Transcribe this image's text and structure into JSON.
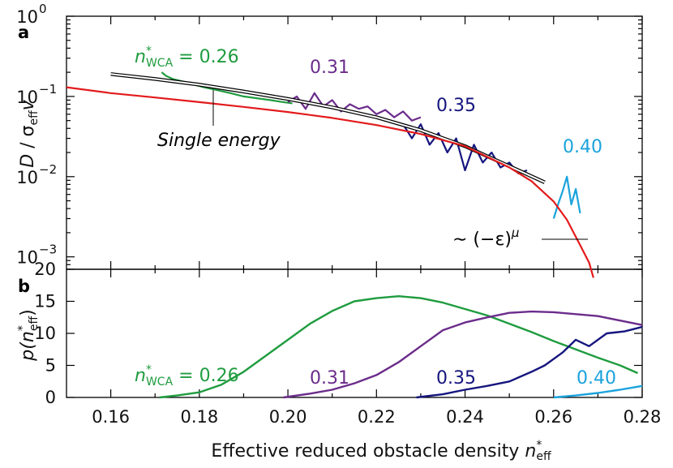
{
  "figure": {
    "xlabel": "Effective reduced obstacle density",
    "xlabel_sym": "n",
    "xlabel_sup": "*",
    "xlabel_sub": "eff",
    "x_ticks": [
      "0.16",
      "0.18",
      "0.20",
      "0.22",
      "0.24",
      "0.26",
      "0.28"
    ]
  },
  "chart_data": [
    {
      "panel": "a",
      "type": "line",
      "yscale": "log",
      "xlim": [
        0.15,
        0.28
      ],
      "ylim": [
        0.0007,
        1.0
      ],
      "ylabel": "D / σ_eff v",
      "ylabel_main": "D",
      "ylabel_sep": " / σ",
      "ylabel_sub": "eff",
      "ylabel_v": "v",
      "y_ticks": [
        "10",
        "10",
        "10",
        "10"
      ],
      "y_tick_exps": [
        "0",
        "−1",
        "−2",
        "−3"
      ],
      "y_tick_values": [
        1,
        0.1,
        0.01,
        0.001
      ],
      "labels": {
        "n_sym": "n",
        "n_sup": "*",
        "n_sub": "WCA",
        "first": " = 0.26",
        "l031": "0.31",
        "l035": "0.35",
        "l040": "0.40",
        "single": "Single energy",
        "power": "∼ (−ε)",
        "power_exp": "μ"
      },
      "series": [
        {
          "name": "n*_WCA = 0.26",
          "color": "#1f9c3f",
          "x": [
            0.1715,
            0.1725,
            0.174,
            0.176,
            0.178,
            0.181,
            0.184,
            0.187,
            0.19,
            0.193,
            0.196,
            0.199,
            0.201
          ],
          "y": [
            0.2,
            0.18,
            0.165,
            0.155,
            0.145,
            0.13,
            0.12,
            0.11,
            0.1,
            0.095,
            0.09,
            0.085,
            0.082
          ]
        },
        {
          "name": "0.31",
          "color": "#6b2c8b",
          "x": [
            0.2,
            0.202,
            0.204,
            0.206,
            0.208,
            0.21,
            0.212,
            0.214,
            0.216,
            0.218,
            0.22,
            0.222,
            0.224,
            0.226,
            0.228,
            0.23
          ],
          "y": [
            0.085,
            0.1,
            0.07,
            0.11,
            0.075,
            0.09,
            0.065,
            0.08,
            0.07,
            0.075,
            0.06,
            0.068,
            0.055,
            0.065,
            0.05,
            0.055
          ]
        },
        {
          "name": "0.35",
          "color": "#15157f",
          "x": [
            0.226,
            0.228,
            0.23,
            0.232,
            0.234,
            0.236,
            0.238,
            0.24,
            0.242,
            0.244,
            0.246,
            0.248,
            0.25,
            0.252,
            0.254
          ],
          "y": [
            0.045,
            0.03,
            0.045,
            0.025,
            0.035,
            0.02,
            0.03,
            0.012,
            0.025,
            0.015,
            0.02,
            0.013,
            0.015,
            0.011,
            0.012
          ]
        },
        {
          "name": "0.40",
          "color": "#1aa3dc",
          "x": [
            0.26,
            0.261,
            0.262,
            0.263,
            0.264,
            0.265,
            0.266
          ],
          "y": [
            0.003,
            0.0045,
            0.0065,
            0.01,
            0.0045,
            0.007,
            0.0035
          ]
        },
        {
          "name": "Single energy",
          "color": "#000000",
          "x": [
            0.16,
            0.17,
            0.18,
            0.19,
            0.2,
            0.21,
            0.22,
            0.23,
            0.24,
            0.25,
            0.258
          ],
          "y": [
            0.19,
            0.165,
            0.14,
            0.115,
            0.093,
            0.073,
            0.055,
            0.038,
            0.024,
            0.0135,
            0.0085
          ]
        },
        {
          "name": "∼ (−ε)^μ",
          "color": "#e31a1c",
          "x": [
            0.15,
            0.16,
            0.17,
            0.18,
            0.19,
            0.2,
            0.21,
            0.22,
            0.23,
            0.24,
            0.25,
            0.255,
            0.26,
            0.263,
            0.266,
            0.268,
            0.269
          ],
          "y": [
            0.13,
            0.11,
            0.097,
            0.085,
            0.074,
            0.064,
            0.054,
            0.044,
            0.034,
            0.024,
            0.013,
            0.0088,
            0.0049,
            0.0029,
            0.0014,
            0.00085,
            0.00055
          ]
        }
      ]
    },
    {
      "panel": "b",
      "type": "line",
      "xlim": [
        0.15,
        0.28
      ],
      "ylim": [
        0,
        20
      ],
      "ylabel": "p(n*_eff)",
      "ylabel_main": "p(",
      "ylabel_n": "n",
      "ylabel_sup": "*",
      "ylabel_sub": "eff",
      "ylabel_close": ")",
      "y_ticks": [
        "0",
        "5",
        "10",
        "15",
        "20"
      ],
      "y_tick_values": [
        0,
        5,
        10,
        15,
        20
      ],
      "labels": {
        "n_sym": "n",
        "n_sup": "*",
        "n_sub": "WCA",
        "first": " = 0.26",
        "l031": "0.31",
        "l035": "0.35",
        "l040": "0.40"
      },
      "series": [
        {
          "name": "0.26",
          "color": "#1f9c3f",
          "x": [
            0.171,
            0.175,
            0.18,
            0.185,
            0.19,
            0.195,
            0.2,
            0.205,
            0.21,
            0.215,
            0.22,
            0.225,
            0.23,
            0.235,
            0.24,
            0.245,
            0.25,
            0.255,
            0.26,
            0.265,
            0.27,
            0.275,
            0.279
          ],
          "y": [
            0,
            0.3,
            0.8,
            2.0,
            4.0,
            6.5,
            9.0,
            11.5,
            13.5,
            15.0,
            15.5,
            15.8,
            15.5,
            14.8,
            13.8,
            12.8,
            11.5,
            10.2,
            8.8,
            7.5,
            6.2,
            5.0,
            3.8
          ]
        },
        {
          "name": "0.31",
          "color": "#6b2c8b",
          "x": [
            0.199,
            0.205,
            0.21,
            0.215,
            0.22,
            0.225,
            0.23,
            0.235,
            0.24,
            0.245,
            0.25,
            0.255,
            0.26,
            0.265,
            0.27,
            0.275,
            0.28
          ],
          "y": [
            0,
            0.6,
            1.2,
            2.2,
            3.5,
            5.5,
            8.0,
            10.5,
            11.7,
            12.5,
            13.2,
            13.4,
            13.3,
            13.0,
            12.7,
            12.0,
            11.3
          ]
        },
        {
          "name": "0.35",
          "color": "#15157f",
          "x": [
            0.229,
            0.235,
            0.24,
            0.245,
            0.25,
            0.255,
            0.258,
            0.262,
            0.265,
            0.268,
            0.272,
            0.276,
            0.28
          ],
          "y": [
            0,
            0.5,
            1.2,
            1.8,
            2.5,
            4.0,
            5.0,
            7.0,
            9.0,
            8.0,
            10.0,
            10.3,
            11.0
          ]
        },
        {
          "name": "0.40",
          "color": "#1aa3dc",
          "x": [
            0.26,
            0.265,
            0.27,
            0.275,
            0.28
          ],
          "y": [
            0,
            0.3,
            0.7,
            1.2,
            1.8
          ]
        }
      ]
    }
  ]
}
